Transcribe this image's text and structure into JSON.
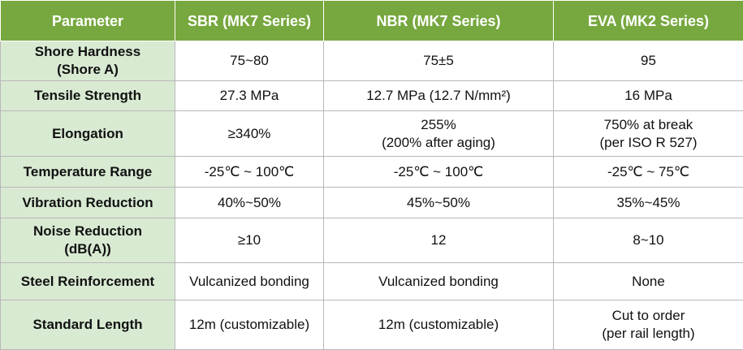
{
  "header": {
    "parameter": "Parameter",
    "col1": "SBR (MK7 Series)",
    "col2": "NBR (MK7 Series)",
    "col3": "EVA (MK2 Series)"
  },
  "rows": [
    {
      "label": "Shore Hardness\n(Shore A)",
      "sbr": "75~80",
      "nbr": "75±5",
      "eva": "95"
    },
    {
      "label": "Tensile Strength",
      "sbr": "27.3 MPa",
      "nbr": "12.7 MPa (12.7 N/mm²)",
      "eva": "16 MPa"
    },
    {
      "label": "Elongation",
      "sbr": "≥340%",
      "nbr": "255%\n(200% after aging)",
      "eva": "750% at break\n(per ISO R 527)"
    },
    {
      "label": "Temperature Range",
      "sbr": "-25℃ ~ 100℃",
      "nbr": "-25℃ ~ 100℃",
      "eva": "-25℃ ~ 75℃"
    },
    {
      "label": "Vibration Reduction",
      "sbr": "40%~50%",
      "nbr": "45%~50%",
      "eva": "35%~45%"
    },
    {
      "label": "Noise Reduction\n(dB(A))",
      "sbr": "≥10",
      "nbr": "12",
      "eva": "8~10"
    },
    {
      "label": "Steel Reinforcement",
      "sbr": "Vulcanized bonding",
      "nbr": "Vulcanized bonding",
      "eva": "None"
    },
    {
      "label": "Standard Length",
      "sbr": "12m (customizable)",
      "nbr": "12m (customizable)",
      "eva": "Cut to order\n(per rail length)"
    }
  ],
  "colors": {
    "header_bg": "#77a83f",
    "row_label_bg": "#d9ead3",
    "border": "#b8b8b8"
  }
}
